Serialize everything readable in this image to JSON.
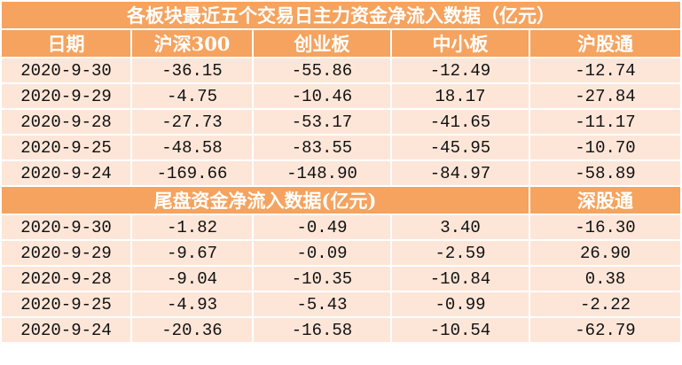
{
  "title": "各板块最近五个交易日主力资金净流入数据（亿元）",
  "header": [
    "日期",
    "沪深300",
    "创业板",
    "中小板",
    "沪股通"
  ],
  "rows": [
    [
      "2020-9-30",
      "-36.15",
      "-55.86",
      "-12.49",
      "-12.74"
    ],
    [
      "2020-9-29",
      "-4.75",
      "-10.46",
      "18.17",
      "-27.84"
    ],
    [
      "2020-9-28",
      "-27.73",
      "-53.17",
      "-41.65",
      "-11.17"
    ],
    [
      "2020-9-25",
      "-48.58",
      "-83.55",
      "-45.95",
      "-10.70"
    ],
    [
      "2020-9-24",
      "-169.66",
      "-148.90",
      "-84.97",
      "-58.89"
    ]
  ],
  "section2": {
    "title": "尾盘资金净流入数据(亿元)",
    "header_last": "深股通"
  },
  "rows2": [
    [
      "2020-9-30",
      "-1.82",
      "-0.49",
      "3.40",
      "-16.30"
    ],
    [
      "2020-9-29",
      "-9.67",
      "-0.09",
      "-2.59",
      "26.90"
    ],
    [
      "2020-9-28",
      "-9.04",
      "-10.35",
      "-10.84",
      "0.38"
    ],
    [
      "2020-9-25",
      "-4.93",
      "-5.43",
      "-0.99",
      "-2.22"
    ],
    [
      "2020-9-24",
      "-20.36",
      "-16.58",
      "-10.54",
      "-62.79"
    ]
  ]
}
